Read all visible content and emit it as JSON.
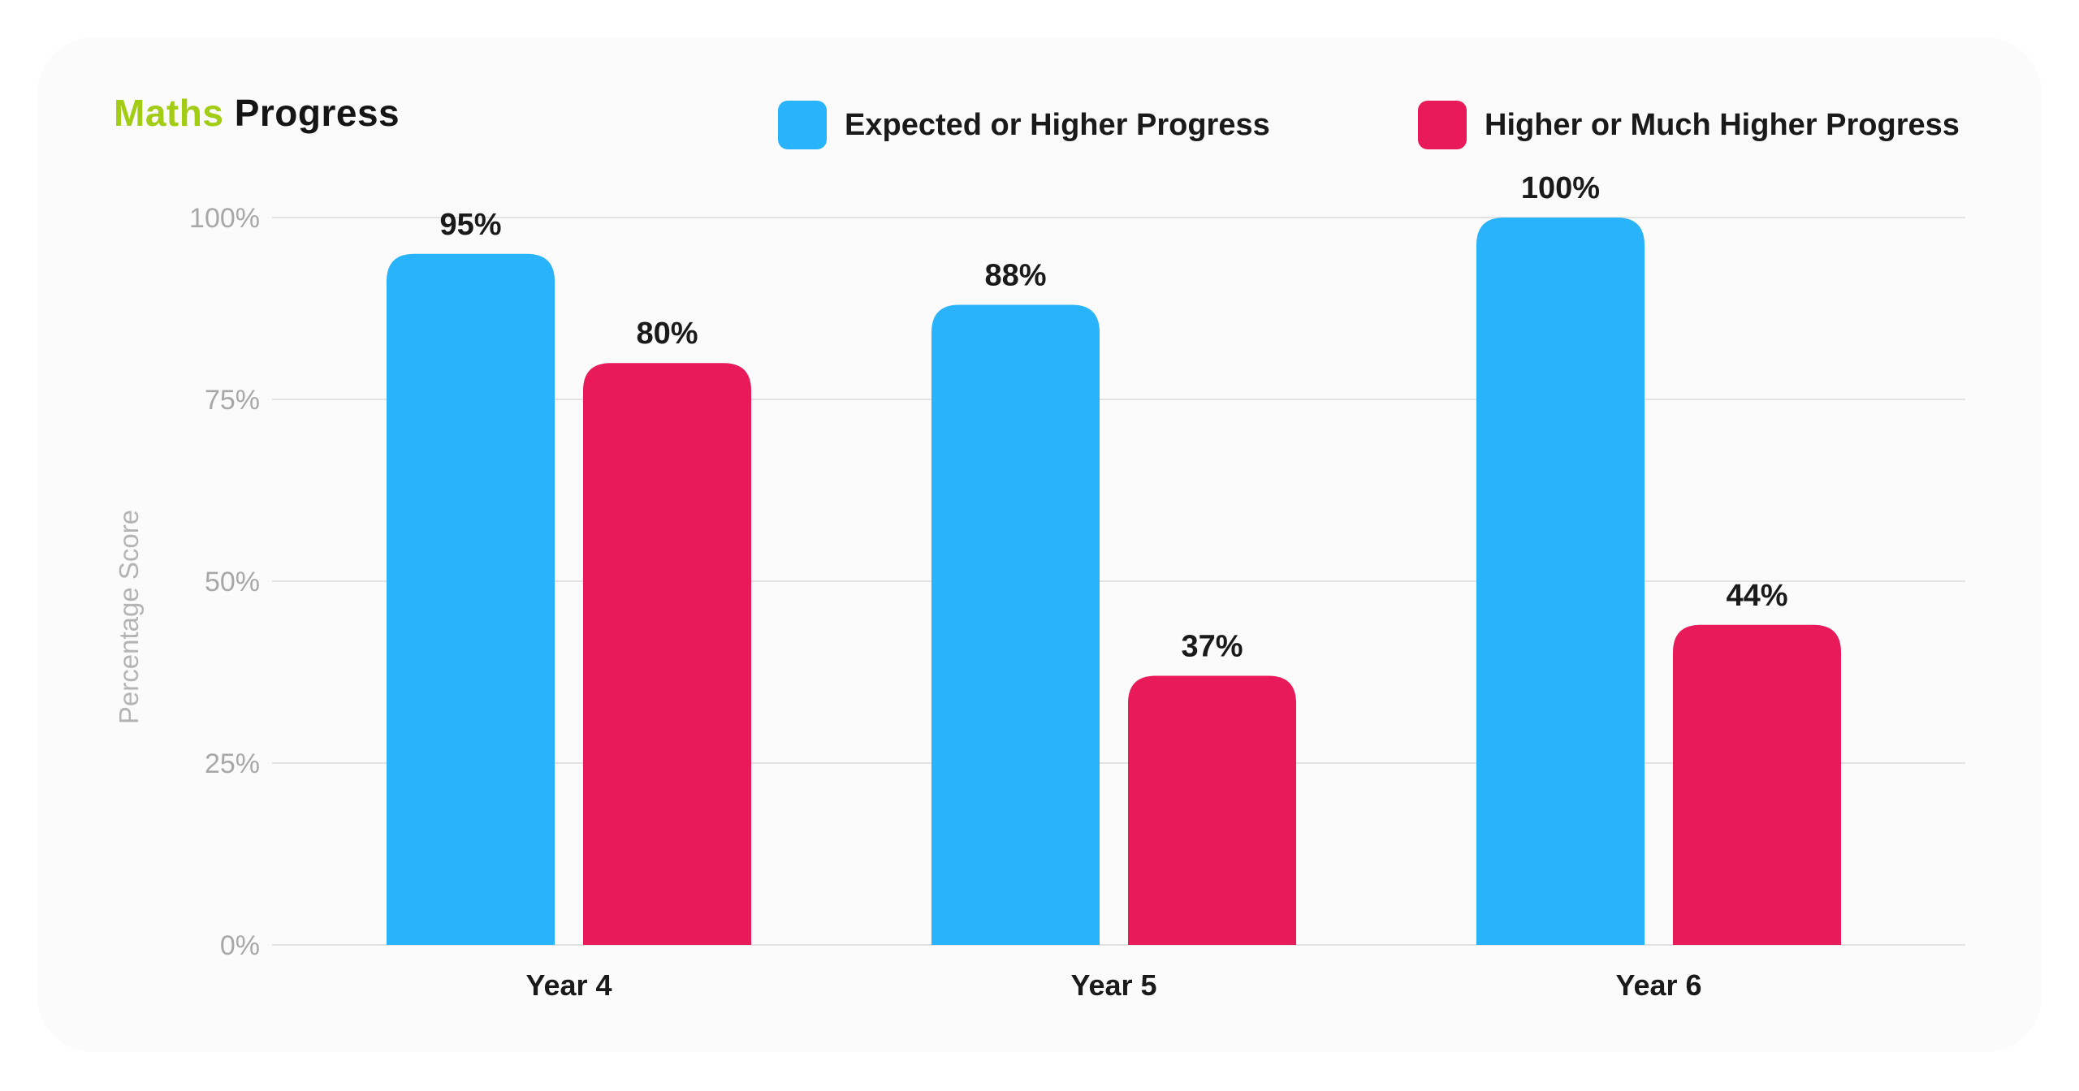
{
  "chart_data": {
    "type": "bar",
    "title_part1": "Maths",
    "title_part2": "Progress",
    "ylabel": "Percentage Score",
    "xlabel": "",
    "ylim": [
      0,
      100
    ],
    "yticks": [
      0,
      25,
      50,
      75,
      100
    ],
    "ytick_labels": [
      "0%",
      "25%",
      "50%",
      "75%",
      "100%"
    ],
    "categories": [
      "Year 4",
      "Year 5",
      "Year 6"
    ],
    "grid": true,
    "legend_position": "top-right",
    "series": [
      {
        "name": "Expected or Higher Progress",
        "color": "#29b3fb",
        "values": [
          95,
          88,
          100
        ],
        "labels": [
          "95%",
          "88%",
          "100%"
        ]
      },
      {
        "name": "Higher or Much Higher Progress",
        "color": "#e81a5a",
        "values": [
          80,
          37,
          44
        ],
        "labels": [
          "80%",
          "37%",
          "44%"
        ]
      }
    ]
  },
  "colors": {
    "title_accent": "#a3cc14",
    "title_text": "#151515",
    "grid": "#e2e2e2",
    "tick_text": "#a8a8a8"
  }
}
